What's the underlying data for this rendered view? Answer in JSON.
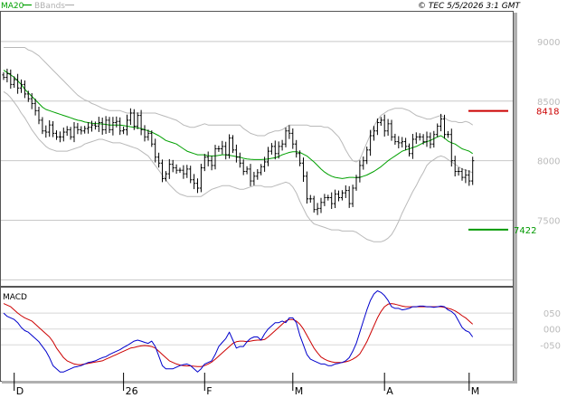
{
  "header": {
    "legend": [
      {
        "label": "MA20",
        "color": "#00a000"
      },
      {
        "label": "BBands",
        "color": "#b0b0b0"
      }
    ],
    "copyright": "© TEC 5/5/2026 3:1 GMT"
  },
  "colors": {
    "price_bars": "#000000",
    "ma20": "#00a000",
    "bbands": "#b9b9b9",
    "resistance": "#cc0000",
    "support": "#009900",
    "macd_line": "#0000cc",
    "signal_line": "#cc0000",
    "grid": "#c8c8c8"
  },
  "chart_data": [
    {
      "type": "ohlc",
      "y_ticks": [
        "9000",
        "8500",
        "8000",
        "7500"
      ],
      "y_tick_values": [
        9000,
        8500,
        8000,
        7500
      ],
      "ylim": [
        6950,
        9250
      ],
      "x_ticks": [
        "D",
        "26",
        "F",
        "M",
        "A",
        "M"
      ],
      "x_tick_index": [
        3,
        34,
        57,
        82,
        108,
        132
      ],
      "n_bars": 134,
      "levels": [
        {
          "label": "8418",
          "value": 8418,
          "kind": "resistance"
        },
        {
          "label": "7422",
          "value": 7422,
          "kind": "support"
        }
      ],
      "close": [
        8700,
        8730,
        8640,
        8680,
        8610,
        8640,
        8560,
        8520,
        8480,
        8420,
        8340,
        8250,
        8240,
        8300,
        8230,
        8200,
        8200,
        8240,
        8260,
        8200,
        8280,
        8260,
        8250,
        8270,
        8280,
        8300,
        8290,
        8320,
        8260,
        8340,
        8260,
        8320,
        8330,
        8250,
        8260,
        8340,
        8400,
        8290,
        8380,
        8260,
        8200,
        8230,
        8140,
        8030,
        7980,
        7850,
        7890,
        7970,
        7940,
        7920,
        7920,
        7890,
        7930,
        7840,
        7810,
        7770,
        7940,
        8030,
        8000,
        7960,
        8100,
        8100,
        8120,
        8050,
        8190,
        8090,
        8030,
        7980,
        7910,
        7930,
        7830,
        7870,
        7900,
        7950,
        7990,
        8080,
        8120,
        8060,
        8120,
        8140,
        8250,
        8230,
        8140,
        8060,
        7980,
        7870,
        7680,
        7680,
        7590,
        7600,
        7650,
        7690,
        7690,
        7640,
        7720,
        7690,
        7730,
        7750,
        7640,
        7770,
        7860,
        7960,
        8000,
        8090,
        8210,
        8250,
        8320,
        8340,
        8250,
        8310,
        8200,
        8160,
        8150,
        8160,
        8120,
        8060,
        8180,
        8200,
        8200,
        8160,
        8200,
        8140,
        8220,
        8290,
        8350,
        8220,
        8220,
        8000,
        7910,
        7910,
        7860,
        7880,
        7830,
        8000
      ],
      "ma20": [
        8760,
        8740,
        8720,
        8700,
        8670,
        8640,
        8600,
        8570,
        8540,
        8510,
        8480,
        8450,
        8430,
        8420,
        8410,
        8400,
        8390,
        8380,
        8370,
        8360,
        8350,
        8340,
        8335,
        8325,
        8320,
        8315,
        8312,
        8310,
        8308,
        8305,
        8300,
        8300,
        8300,
        8300,
        8295,
        8290,
        8285,
        8280,
        8275,
        8270,
        8260,
        8250,
        8240,
        8225,
        8210,
        8190,
        8170,
        8160,
        8150,
        8140,
        8120,
        8100,
        8080,
        8070,
        8060,
        8050,
        8050,
        8050,
        8040,
        8040,
        8040,
        8045,
        8050,
        8050,
        8045,
        8040,
        8035,
        8030,
        8020,
        8015,
        8012,
        8010,
        8010,
        8010,
        8012,
        8015,
        8020,
        8025,
        8035,
        8050,
        8060,
        8070,
        8075,
        8075,
        8070,
        8055,
        8040,
        8015,
        7990,
        7960,
        7930,
        7905,
        7885,
        7870,
        7860,
        7855,
        7850,
        7855,
        7860,
        7860,
        7858,
        7860,
        7870,
        7880,
        7895,
        7910,
        7930,
        7950,
        7975,
        8000,
        8020,
        8040,
        8060,
        8080,
        8090,
        8100,
        8110,
        8120,
        8135,
        8150,
        8160,
        8170,
        8185,
        8200,
        8210,
        8190,
        8165,
        8150,
        8140,
        8120,
        8100,
        8090,
        8080,
        8060
      ],
      "bb_upper": [
        8950,
        8950,
        8950,
        8950,
        8950,
        8950,
        8950,
        8930,
        8920,
        8900,
        8880,
        8850,
        8820,
        8790,
        8760,
        8730,
        8700,
        8670,
        8640,
        8610,
        8580,
        8550,
        8530,
        8510,
        8500,
        8480,
        8470,
        8455,
        8440,
        8430,
        8420,
        8420,
        8420,
        8420,
        8410,
        8400,
        8400,
        8400,
        8400,
        8400,
        8400,
        8400,
        8400,
        8400,
        8390,
        8380,
        8370,
        8360,
        8350,
        8340,
        8320,
        8300,
        8290,
        8280,
        8280,
        8290,
        8300,
        8310,
        8300,
        8300,
        8300,
        8300,
        8300,
        8300,
        8300,
        8300,
        8300,
        8300,
        8270,
        8250,
        8230,
        8220,
        8210,
        8210,
        8210,
        8230,
        8240,
        8250,
        8250,
        8260,
        8280,
        8300,
        8300,
        8300,
        8300,
        8300,
        8300,
        8290,
        8290,
        8290,
        8290,
        8280,
        8280,
        8260,
        8230,
        8200,
        8150,
        8090,
        8040,
        8000,
        7990,
        8010,
        8080,
        8150,
        8220,
        8290,
        8340,
        8380,
        8400,
        8420,
        8430,
        8440,
        8440,
        8440,
        8430,
        8420,
        8400,
        8380,
        8370,
        8360,
        8350,
        8350,
        8360,
        8370,
        8380,
        8360,
        8340,
        8330,
        8330,
        8320,
        8320,
        8330,
        8320,
        8300
      ],
      "bb_lower": [
        8580,
        8560,
        8530,
        8490,
        8450,
        8400,
        8360,
        8310,
        8260,
        8220,
        8180,
        8150,
        8120,
        8100,
        8090,
        8080,
        8080,
        8080,
        8080,
        8090,
        8100,
        8110,
        8120,
        8140,
        8150,
        8160,
        8170,
        8180,
        8180,
        8170,
        8160,
        8150,
        8150,
        8150,
        8140,
        8130,
        8120,
        8110,
        8100,
        8080,
        8060,
        8040,
        8000,
        7960,
        7920,
        7880,
        7840,
        7800,
        7770,
        7740,
        7720,
        7710,
        7700,
        7700,
        7700,
        7700,
        7700,
        7720,
        7740,
        7760,
        7770,
        7780,
        7790,
        7790,
        7790,
        7780,
        7770,
        7760,
        7760,
        7770,
        7780,
        7790,
        7790,
        7790,
        7780,
        7780,
        7780,
        7790,
        7800,
        7810,
        7820,
        7810,
        7780,
        7730,
        7660,
        7600,
        7540,
        7500,
        7470,
        7460,
        7450,
        7440,
        7430,
        7420,
        7420,
        7420,
        7410,
        7410,
        7410,
        7410,
        7400,
        7380,
        7360,
        7340,
        7330,
        7320,
        7320,
        7320,
        7330,
        7350,
        7380,
        7430,
        7490,
        7560,
        7620,
        7680,
        7740,
        7790,
        7850,
        7900,
        7960,
        7990,
        8010,
        8030,
        8040,
        8030,
        8010,
        7990,
        7970,
        7950,
        7930,
        7920,
        7910,
        7900
      ]
    },
    {
      "type": "line",
      "title": "MACD",
      "y_ticks": [
        "050",
        "000",
        "-050"
      ],
      "y_tick_values": [
        50,
        0,
        -50
      ],
      "ylim": [
        -160,
        130
      ],
      "series": [
        {
          "name": "",
          "color": "#0000cc",
          "values": [
            50,
            40,
            35,
            30,
            20,
            5,
            -5,
            -10,
            -20,
            -30,
            -40,
            -55,
            -70,
            -90,
            -115,
            -125,
            -135,
            -135,
            -130,
            -125,
            -120,
            -118,
            -115,
            -110,
            -105,
            -103,
            -100,
            -95,
            -90,
            -87,
            -80,
            -75,
            -70,
            -65,
            -58,
            -52,
            -45,
            -38,
            -35,
            -38,
            -42,
            -45,
            -38,
            -55,
            -85,
            -115,
            -125,
            -125,
            -125,
            -120,
            -115,
            -112,
            -110,
            -115,
            -125,
            -135,
            -125,
            -110,
            -105,
            -100,
            -80,
            -55,
            -42,
            -30,
            -10,
            -35,
            -60,
            -55,
            -55,
            -40,
            -30,
            -25,
            -25,
            -35,
            -15,
            0,
            10,
            20,
            20,
            25,
            20,
            35,
            35,
            20,
            -20,
            -50,
            -80,
            -95,
            -100,
            -105,
            -110,
            -110,
            -115,
            -115,
            -110,
            -108,
            -105,
            -100,
            -90,
            -70,
            -45,
            -10,
            25,
            60,
            90,
            110,
            120,
            115,
            105,
            90,
            70,
            65,
            65,
            60,
            62,
            65,
            70,
            70,
            72,
            72,
            70,
            70,
            68,
            70,
            72,
            70,
            60,
            55,
            45,
            25,
            5,
            -5,
            -10,
            -25
          ]
        },
        {
          "name": "",
          "color": "#cc0000",
          "values": [
            80,
            75,
            70,
            60,
            50,
            42,
            35,
            30,
            25,
            15,
            5,
            -5,
            -15,
            -25,
            -40,
            -60,
            -75,
            -90,
            -100,
            -105,
            -110,
            -112,
            -112,
            -110,
            -108,
            -106,
            -104,
            -102,
            -100,
            -95,
            -90,
            -85,
            -80,
            -75,
            -70,
            -65,
            -60,
            -58,
            -55,
            -53,
            -52,
            -53,
            -55,
            -60,
            -70,
            -80,
            -90,
            -100,
            -105,
            -110,
            -113,
            -115,
            -116,
            -116,
            -117,
            -118,
            -118,
            -115,
            -110,
            -104,
            -95,
            -85,
            -75,
            -65,
            -55,
            -45,
            -40,
            -38,
            -38,
            -40,
            -38,
            -36,
            -35,
            -35,
            -33,
            -25,
            -15,
            -5,
            5,
            15,
            25,
            30,
            30,
            25,
            15,
            0,
            -20,
            -40,
            -60,
            -75,
            -88,
            -95,
            -100,
            -103,
            -105,
            -105,
            -105,
            -103,
            -100,
            -95,
            -88,
            -78,
            -60,
            -40,
            -15,
            10,
            35,
            55,
            70,
            78,
            80,
            78,
            75,
            72,
            70,
            70,
            70,
            70,
            70,
            70,
            70,
            70,
            70,
            70,
            70,
            68,
            65,
            62,
            57,
            50,
            42,
            35,
            25,
            15
          ]
        }
      ]
    }
  ]
}
